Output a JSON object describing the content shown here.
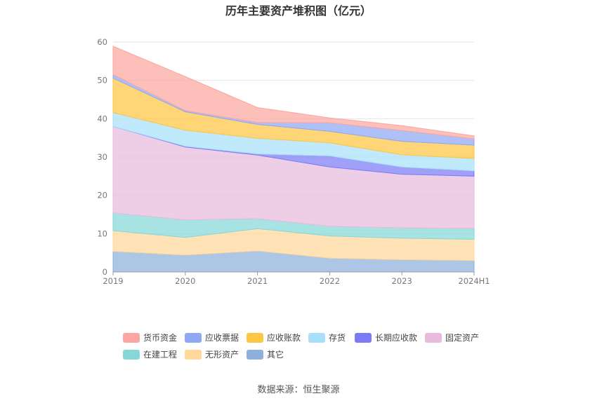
{
  "chart_data": {
    "type": "area",
    "stacked": true,
    "title": "历年主要资产堆积图（亿元）",
    "source": "数据来源：恒生聚源",
    "categories": [
      "2019",
      "2020",
      "2021",
      "2022",
      "2023",
      "2024H1"
    ],
    "ylim": [
      0,
      60
    ],
    "yticks": [
      "0",
      "10",
      "20",
      "30",
      "40",
      "50",
      "60"
    ],
    "grid": true,
    "legend_position": "bottom",
    "series": [
      {
        "name": "其它",
        "color": "#8fb0dd",
        "values": [
          5.4,
          4.4,
          5.5,
          3.6,
          3.2,
          3.0
        ]
      },
      {
        "name": "无形资产",
        "color": "#ffd89a",
        "values": [
          5.4,
          4.6,
          5.8,
          5.8,
          5.6,
          5.5
        ]
      },
      {
        "name": "在建工程",
        "color": "#86d8d8",
        "values": [
          4.6,
          4.6,
          2.6,
          2.5,
          2.7,
          2.9
        ]
      },
      {
        "name": "固定资产",
        "color": "#e8bbdc",
        "values": [
          22.6,
          19.0,
          16.6,
          15.5,
          14.0,
          13.6
        ]
      },
      {
        "name": "长期应收款",
        "color": "#7b7cf5",
        "values": [
          0.0,
          0.2,
          0.3,
          2.9,
          1.9,
          1.4
        ]
      },
      {
        "name": "存货",
        "color": "#a8e0fa",
        "values": [
          3.6,
          4.2,
          4.1,
          3.4,
          3.2,
          3.2
        ]
      },
      {
        "name": "应收账款",
        "color": "#fdc644",
        "values": [
          9.0,
          4.8,
          3.6,
          3.0,
          3.5,
          3.5
        ]
      },
      {
        "name": "应收票据",
        "color": "#8ea8f4",
        "values": [
          0.9,
          0.3,
          0.5,
          2.2,
          2.8,
          1.6
        ]
      },
      {
        "name": "货币资金",
        "color": "#fba6a0",
        "values": [
          7.4,
          8.9,
          3.9,
          1.3,
          1.3,
          0.8
        ]
      }
    ],
    "legend_order": [
      "货币资金",
      "应收票据",
      "应收账款",
      "存货",
      "长期应收款",
      "固定资产",
      "在建工程",
      "无形资产",
      "其它"
    ]
  }
}
